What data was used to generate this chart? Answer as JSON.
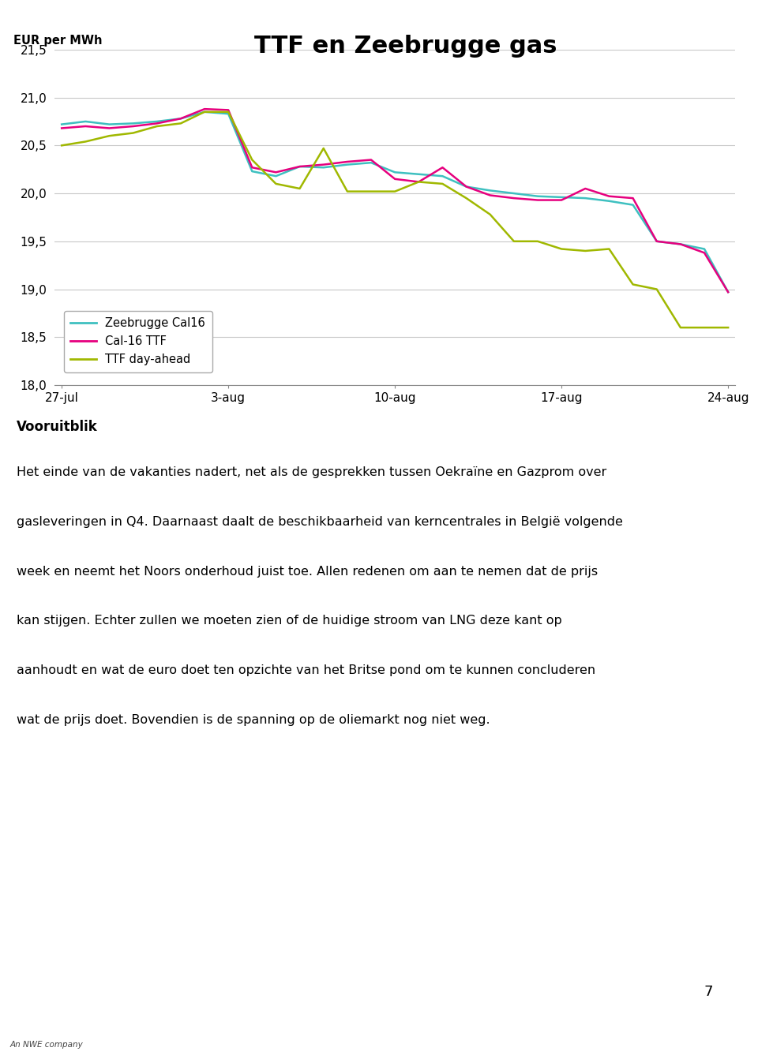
{
  "title": "TTF en Zeebrugge gas",
  "ylabel": "EUR per MWh",
  "ylim": [
    18.0,
    21.5
  ],
  "yticks": [
    18.0,
    18.5,
    19.0,
    19.5,
    20.0,
    20.5,
    21.0,
    21.5
  ],
  "xtick_labels": [
    "27-jul",
    "3-aug",
    "10-aug",
    "17-aug",
    "24-aug"
  ],
  "background_color": "#ffffff",
  "grid_color": "#c8c8c8",
  "line_zeebrugge_color": "#3ec0c0",
  "line_ttf_color": "#e6007e",
  "line_dayahead_color": "#a0b800",
  "legend_labels": [
    "Zeebrugge Cal16",
    "Cal-16 TTF",
    "TTF day-ahead"
  ],
  "x_values": [
    0,
    1,
    2,
    3,
    4,
    5,
    6,
    7,
    8,
    9,
    10,
    11,
    12,
    13,
    14,
    15,
    16,
    17,
    18,
    19,
    20,
    21,
    22,
    23,
    24,
    25,
    26,
    27,
    28
  ],
  "zeebrugge": [
    20.72,
    20.75,
    20.72,
    20.73,
    20.75,
    20.78,
    20.85,
    20.83,
    20.23,
    20.18,
    20.28,
    20.27,
    20.3,
    20.32,
    20.22,
    20.2,
    20.18,
    20.07,
    20.03,
    20.0,
    19.97,
    19.96,
    19.95,
    19.92,
    19.88,
    19.5,
    19.47,
    19.42,
    18.97
  ],
  "cal16_ttf": [
    20.68,
    20.7,
    20.68,
    20.7,
    20.73,
    20.78,
    20.88,
    20.87,
    20.27,
    20.22,
    20.28,
    20.3,
    20.33,
    20.35,
    20.15,
    20.12,
    20.27,
    20.07,
    19.98,
    19.95,
    19.93,
    19.93,
    20.05,
    19.97,
    19.95,
    19.5,
    19.47,
    19.38,
    18.97
  ],
  "ttf_dayahead": [
    20.5,
    20.54,
    20.6,
    20.63,
    20.7,
    20.73,
    20.85,
    20.85,
    20.35,
    20.1,
    20.05,
    20.47,
    20.02,
    20.02,
    20.02,
    20.12,
    20.1,
    19.95,
    19.78,
    19.5,
    19.5,
    19.42,
    19.4,
    19.42,
    19.05,
    19.0,
    18.6,
    18.6,
    18.6
  ],
  "vooruitblik_title": "Vooruitblik",
  "text_lines": [
    "Het einde van de vakanties nadert, net als de gesprekken tussen Oekraïne en Gazprom over",
    "gasleveringen in Q4. Daarnaast daalt de beschikbaarheid van kerncentrales in België volgende",
    "week en neemt het Noors onderhoud juist toe. Allen redenen om aan te nemen dat de prijs",
    "kan stijgen. Echter zullen we moeten zien of de huidige stroom van LNG deze kant op",
    "aanhoudt en wat de euro doet ten opzichte van het Britse pond om te kunnen concluderen",
    "wat de prijs doet. Bovendien is de spanning op de oliemarkt nog niet weg."
  ],
  "page_number": "7",
  "footer_text": "An NWE company",
  "footer_bg": "#cde8f5"
}
